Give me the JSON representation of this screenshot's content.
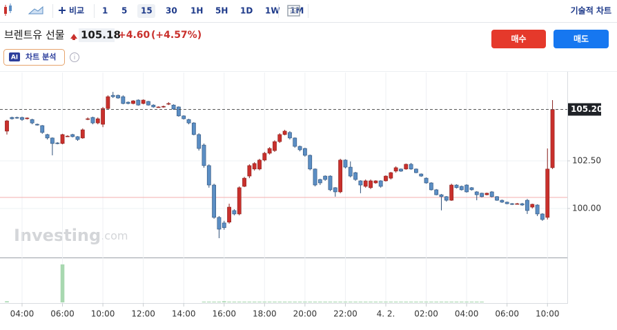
{
  "toolbar": {
    "compare": "비교",
    "intervals": [
      "1",
      "5",
      "15",
      "30",
      "1H",
      "5H",
      "1D",
      "1W",
      "1M"
    ],
    "technical": "기술적 차트"
  },
  "header": {
    "title": "브렌트유 선물",
    "price": "105.18",
    "change": "+4.60",
    "change_pct": "(+4.57%)",
    "buy": "매수",
    "sell": "매도",
    "ai_badge": "AI",
    "analysis": "차트 분석"
  },
  "watermark": {
    "brand": "Investing",
    "suffix": ".com"
  },
  "chart_data": {
    "type": "candlestick",
    "categories": [
      null,
      null,
      null,
      "04:00",
      null,
      null,
      null,
      null,
      null,
      null,
      null,
      "06:00",
      null,
      null,
      null,
      null,
      null,
      null,
      null,
      "10:00",
      null,
      null,
      null,
      null,
      null,
      null,
      null,
      "12:00",
      null,
      null,
      null,
      null,
      null,
      null,
      null,
      "14:00",
      null,
      null,
      null,
      null,
      null,
      null,
      null,
      "16:00",
      null,
      null,
      null,
      null,
      null,
      null,
      null,
      "18:00",
      null,
      null,
      null,
      null,
      null,
      null,
      null,
      "20:00",
      null,
      null,
      null,
      null,
      null,
      null,
      null,
      "22:00",
      null,
      null,
      null,
      null,
      null,
      null,
      null,
      "4. 2.",
      null,
      null,
      null,
      null,
      null,
      null,
      null,
      "02:00",
      null,
      null,
      null,
      null,
      null,
      null,
      null,
      "04:00",
      null,
      null,
      null,
      null,
      null,
      null,
      null,
      "06:00",
      null,
      null,
      null,
      null,
      null,
      null,
      null,
      "10:00",
      null
    ],
    "open": [
      104.06,
      104.78,
      104.78,
      104.78,
      104.71,
      104.67,
      104.42,
      104.35,
      103.88,
      103.7,
      103.44,
      103.41,
      103.8,
      103.88,
      103.77,
      103.7,
      104.71,
      104.78,
      104.49,
      104.42,
      105.25,
      105.94,
      105.94,
      105.87,
      105.58,
      105.51,
      105.69,
      105.51,
      105.62,
      105.43,
      105.33,
      105.33,
      105.51,
      105.43,
      105.33,
      104.86,
      104.67,
      104.49,
      103.88,
      103.33,
      102.25,
      101.23,
      99.53,
      99.24,
      99.28,
      99.89,
      99.71,
      101.16,
      101.7,
      102.07,
      102.07,
      102.54,
      102.9,
      103.04,
      103.51,
      103.88,
      103.99,
      103.7,
      103.26,
      103.15,
      102.79,
      102.07,
      101.52,
      101.7,
      101.7,
      101.09,
      100.87,
      102.54,
      102.17,
      101.88,
      101.45,
      101.16,
      101.09,
      101.34,
      101.45,
      101.45,
      101.59,
      101.96,
      102.07,
      102.07,
      102.32,
      102.07,
      101.81,
      101.59,
      101.34,
      100.98,
      100.72,
      100.62,
      100.43,
      101.23,
      101.16,
      101.23,
      101.09,
      100.87,
      100.8,
      100.72,
      100.87,
      100.62,
      100.43,
      100.33,
      100.25,
      100.25,
      100.25,
      100.43,
      100.07,
      100.18,
      99.71,
      99.53,
      102.14
    ],
    "high": [
      104.65,
      104.82,
      104.82,
      104.82,
      104.78,
      104.71,
      104.46,
      104.38,
      103.92,
      103.73,
      103.48,
      103.92,
      103.84,
      103.92,
      103.8,
      104.2,
      104.78,
      104.82,
      104.78,
      105.33,
      105.94,
      106.12,
      105.98,
      105.94,
      105.62,
      105.69,
      105.73,
      105.73,
      105.65,
      105.47,
      105.36,
      105.4,
      105.58,
      105.47,
      105.36,
      104.89,
      104.71,
      104.53,
      103.95,
      103.41,
      102.32,
      101.3,
      99.6,
      99.35,
      100.25,
      99.96,
      101.16,
      101.66,
      102.32,
      102.43,
      102.61,
      102.97,
      103.22,
      103.58,
      103.95,
      104.13,
      104.06,
      103.73,
      103.3,
      103.19,
      102.83,
      102.1,
      101.56,
      101.74,
      101.74,
      101.12,
      102.61,
      102.58,
      102.47,
      101.92,
      101.48,
      101.52,
      101.52,
      101.48,
      101.48,
      101.74,
      101.92,
      102.21,
      102.1,
      102.36,
      102.39,
      102.1,
      101.84,
      101.63,
      101.38,
      101.02,
      100.76,
      100.65,
      101.3,
      101.27,
      101.2,
      101.27,
      101.12,
      100.91,
      100.83,
      100.83,
      100.91,
      100.65,
      100.47,
      100.36,
      100.29,
      100.29,
      100.29,
      100.5,
      100.25,
      100.22,
      99.75,
      103.15,
      105.69
    ],
    "low": [
      103.88,
      104.67,
      104.71,
      104.6,
      104.67,
      104.42,
      104.35,
      103.92,
      103.62,
      102.79,
      103.37,
      103.37,
      103.77,
      103.73,
      103.55,
      103.66,
      104.64,
      104.42,
      104.42,
      104.27,
      105.22,
      105.8,
      105.76,
      105.47,
      105.47,
      105.47,
      105.4,
      105.47,
      105.4,
      105.29,
      105.29,
      105.29,
      105.43,
      105.18,
      104.82,
      104.67,
      104.42,
      103.84,
      103.04,
      102.14,
      101.09,
      99.46,
      98.44,
      98.88,
      99.2,
      99.64,
      99.64,
      101.12,
      101.59,
      101.99,
      102.0,
      102.47,
      102.83,
      102.97,
      103.44,
      103.84,
      103.62,
      103.19,
      103.0,
      102.72,
      102.0,
      101.16,
      101.23,
      101.45,
      100.91,
      100.62,
      100.8,
      102.1,
      101.63,
      101.45,
      100.8,
      101.09,
      101.02,
      101.3,
      101.09,
      101.41,
      101.52,
      101.88,
      101.92,
      102.03,
      102.03,
      101.85,
      101.66,
      101.3,
      100.94,
      100.69,
      99.9,
      100.36,
      100.4,
      101.05,
      100.94,
      100.83,
      100.94,
      100.43,
      100.58,
      100.69,
      100.58,
      100.4,
      100.29,
      100.22,
      100.18,
      100.22,
      100.14,
      99.71,
      100.0,
      99.6,
      99.35,
      99.42,
      102.07
    ],
    "close": [
      104.6,
      104.71,
      104.75,
      104.67,
      104.75,
      104.49,
      104.38,
      103.99,
      103.7,
      103.41,
      103.41,
      103.88,
      103.8,
      103.77,
      103.62,
      104.13,
      104.71,
      104.49,
      104.71,
      105.25,
      105.87,
      105.87,
      105.8,
      105.51,
      105.51,
      105.65,
      105.43,
      105.69,
      105.43,
      105.33,
      105.33,
      105.36,
      105.51,
      105.22,
      104.86,
      104.71,
      104.49,
      103.88,
      103.15,
      102.25,
      101.23,
      99.53,
      98.91,
      98.99,
      100.07,
      99.71,
      101.09,
      101.59,
      102.25,
      102.36,
      102.54,
      102.9,
      103.15,
      103.51,
      103.88,
      104.06,
      103.7,
      103.26,
      103.08,
      102.79,
      102.07,
      101.23,
      101.34,
      101.52,
      100.98,
      100.87,
      102.54,
      102.17,
      101.7,
      101.52,
      101.23,
      101.45,
      101.45,
      101.45,
      101.16,
      101.7,
      101.88,
      102.14,
      101.96,
      102.32,
      102.07,
      101.88,
      101.7,
      101.34,
      100.98,
      100.72,
      100.62,
      100.43,
      101.23,
      101.09,
      100.98,
      100.87,
      100.98,
      100.72,
      100.62,
      100.8,
      100.62,
      100.43,
      100.33,
      100.25,
      100.22,
      100.25,
      100.18,
      99.89,
      100.22,
      99.71,
      99.42,
      102.07,
      105.2
    ],
    "volume": [
      3,
      0,
      0,
      0,
      0,
      0,
      0,
      0,
      0,
      0,
      0,
      100,
      0,
      0,
      0,
      0,
      0,
      0,
      0,
      0,
      0,
      0,
      0,
      0,
      0,
      0,
      0,
      0,
      0,
      0,
      0,
      0,
      0,
      0,
      0,
      0,
      0,
      0,
      0,
      2,
      2,
      2,
      2,
      3,
      2,
      2,
      2,
      2,
      2,
      2,
      2,
      2,
      2,
      2,
      2,
      2,
      2,
      2,
      2,
      2,
      2,
      2,
      2,
      2,
      2,
      2,
      2,
      2,
      2,
      2,
      2,
      2,
      2,
      2,
      2,
      2,
      2,
      2,
      2,
      2,
      2,
      2,
      2,
      2,
      2,
      2,
      2,
      2,
      2,
      2,
      2,
      2,
      2,
      2,
      2,
      0,
      0,
      0,
      0,
      0,
      0,
      0,
      0,
      0,
      0,
      0,
      0,
      0,
      0
    ],
    "up_color": "#c9302c",
    "down_color": "#5b8ec4",
    "volume_color": "#a8d8b0",
    "ylim": [
      97.46,
      107.14
    ],
    "yticks": [
      {
        "value": 100,
        "label": "100.00"
      },
      {
        "value": 102.5,
        "label": "102.50"
      }
    ],
    "last_price": {
      "value": 105.2,
      "label": "105.20"
    },
    "prev_close": 100.58,
    "grid": true
  }
}
